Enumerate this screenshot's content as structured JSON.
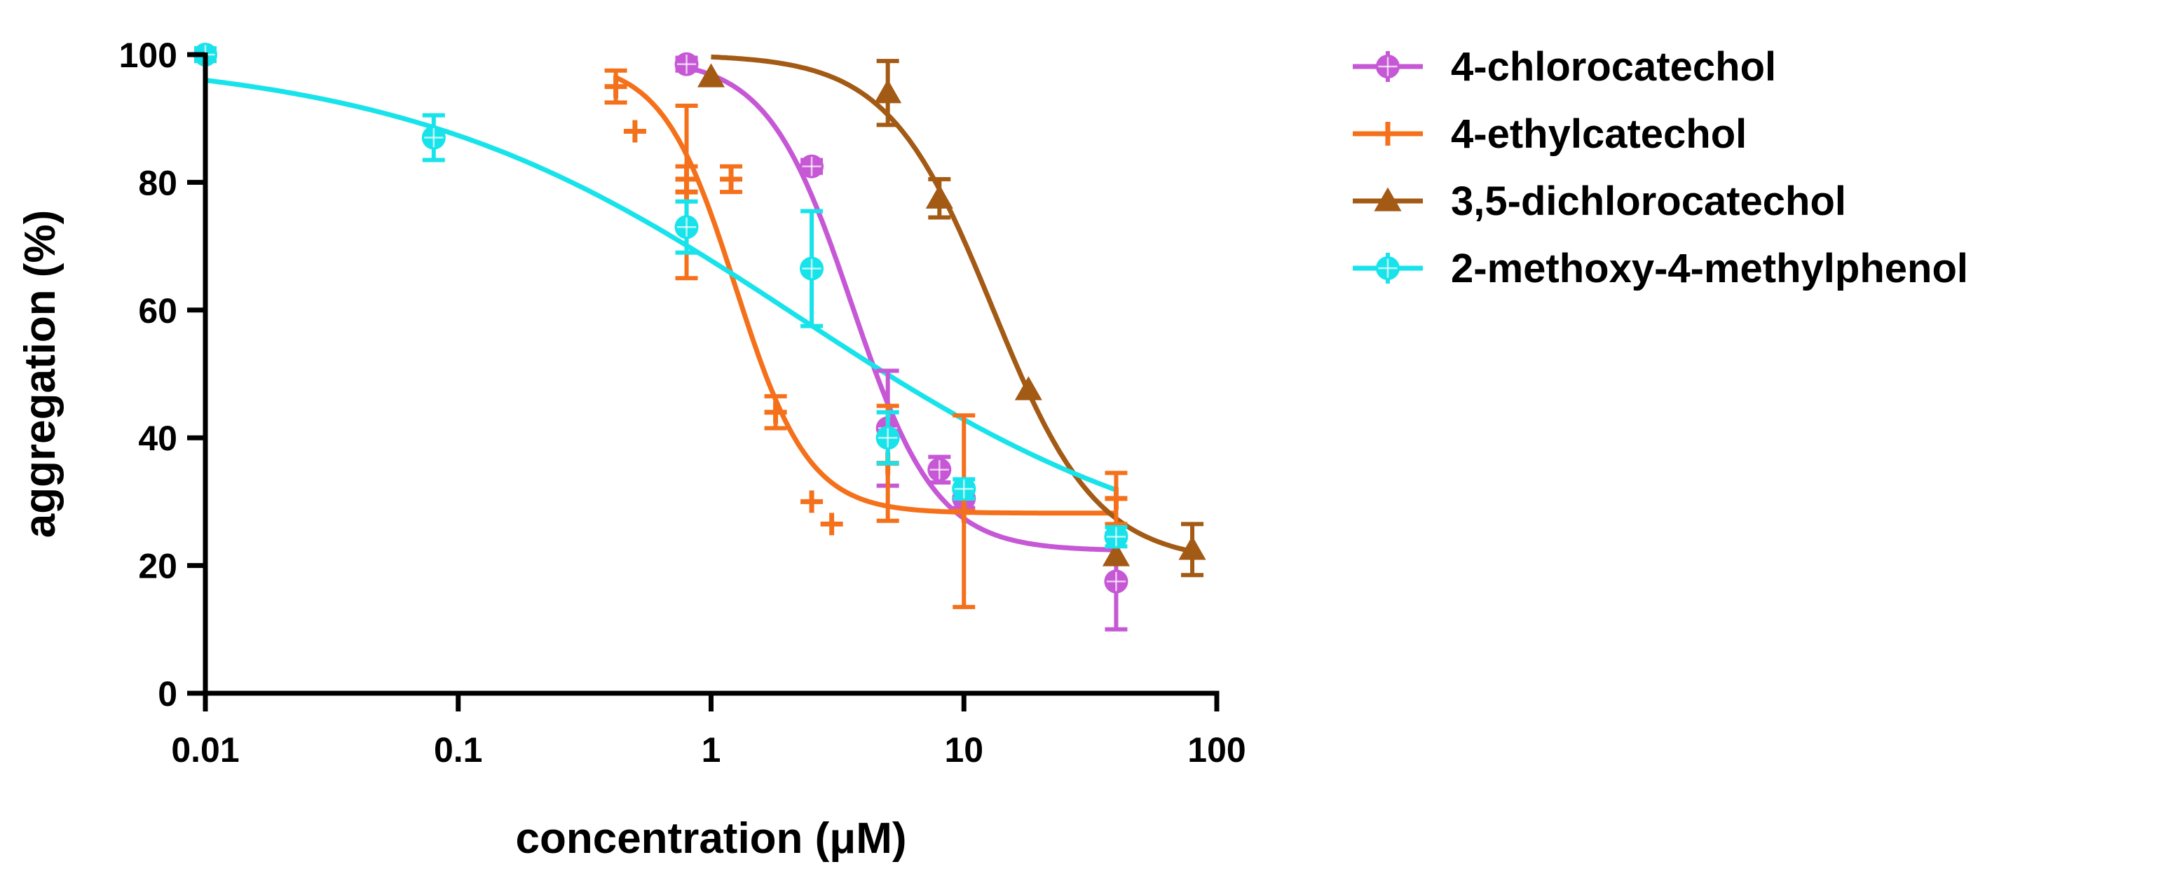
{
  "chart_data": {
    "type": "scatter",
    "title": "",
    "xlabel": "concentration (μM)",
    "ylabel": "aggregation (%)",
    "xscale": "log",
    "xlim": [
      0.01,
      100
    ],
    "ylim": [
      0,
      100
    ],
    "xticks": [
      0.01,
      0.1,
      1,
      10,
      100
    ],
    "xtick_labels": [
      "0.01",
      "0.1",
      "1",
      "10",
      "100"
    ],
    "yticks": [
      0,
      20,
      40,
      60,
      80,
      100
    ],
    "ytick_labels": [
      "0",
      "20",
      "40",
      "60",
      "80",
      "100"
    ],
    "legend_position": "right",
    "series": [
      {
        "name": "4-chlorocatechol",
        "color": "#c658d6",
        "marker": "circle-star",
        "points": [
          {
            "x": 0.8,
            "y": 98.5,
            "err": 1
          },
          {
            "x": 2.5,
            "y": 82.5,
            "err": 1
          },
          {
            "x": 5,
            "y": 41.5,
            "err": 9
          },
          {
            "x": 8,
            "y": 35,
            "err": 2
          },
          {
            "x": 10,
            "y": 30.5,
            "err": 1.5
          },
          {
            "x": 40,
            "y": 17.5,
            "err": 7.5
          }
        ],
        "fit": {
          "top": 99.5,
          "bottom": 22.3,
          "ec50": 3.6,
          "hill": 2.6,
          "x_range": [
            0.8,
            40
          ]
        }
      },
      {
        "name": "4-ethylcatechol",
        "color": "#f5701a",
        "marker": "plus",
        "points": [
          {
            "x": 0.42,
            "y": 95,
            "err": 2.5
          },
          {
            "x": 0.5,
            "y": 88,
            "err": 0
          },
          {
            "x": 0.8,
            "y": 78.5,
            "err": 13.5
          },
          {
            "x": 0.8,
            "y": 80.5,
            "err": 2
          },
          {
            "x": 1.2,
            "y": 80.5,
            "err": 2
          },
          {
            "x": 1.8,
            "y": 44,
            "err": 2.5
          },
          {
            "x": 2.5,
            "y": 30,
            "err": 0
          },
          {
            "x": 3,
            "y": 26.5,
            "err": 0
          },
          {
            "x": 5,
            "y": 36,
            "err": 9
          },
          {
            "x": 10,
            "y": 28.5,
            "err": 15
          },
          {
            "x": 40,
            "y": 30.5,
            "err": 4
          }
        ],
        "fit": {
          "top": 99,
          "bottom": 28.2,
          "ec50": 1.25,
          "hill": 3.0,
          "x_range": [
            0.42,
            40
          ]
        }
      },
      {
        "name": "3,5-dichlorocatechol",
        "color": "#a35a14",
        "marker": "triangle",
        "points": [
          {
            "x": 1,
            "y": 96.5,
            "err": 0
          },
          {
            "x": 5,
            "y": 94,
            "err": 5
          },
          {
            "x": 8,
            "y": 77.5,
            "err": 3
          },
          {
            "x": 18,
            "y": 47.5,
            "err": 0
          },
          {
            "x": 40,
            "y": 21.5,
            "err": 0
          },
          {
            "x": 80,
            "y": 22.5,
            "err": 4
          }
        ],
        "fit": {
          "top": 100,
          "bottom": 20.5,
          "ec50": 13,
          "hill": 2.1,
          "x_range": [
            1,
            80
          ]
        }
      },
      {
        "name": "2-methoxy-4-methylphenol",
        "color": "#19e3ea",
        "marker": "circle-cross",
        "points": [
          {
            "x": 0.01,
            "y": 100,
            "err": 1
          },
          {
            "x": 0.08,
            "y": 87,
            "err": 3.5
          },
          {
            "x": 0.8,
            "y": 73,
            "err": 4
          },
          {
            "x": 2.5,
            "y": 66.5,
            "err": 9
          },
          {
            "x": 5,
            "y": 40,
            "err": 4
          },
          {
            "x": 10,
            "y": 32,
            "err": 1.5
          },
          {
            "x": 40,
            "y": 24.5,
            "err": 1.5
          }
        ],
        "fit": {
          "top": 100,
          "bottom": 18,
          "ec50": 2.2,
          "hill": 0.55,
          "x_range": [
            0.01,
            40
          ]
        }
      }
    ]
  }
}
